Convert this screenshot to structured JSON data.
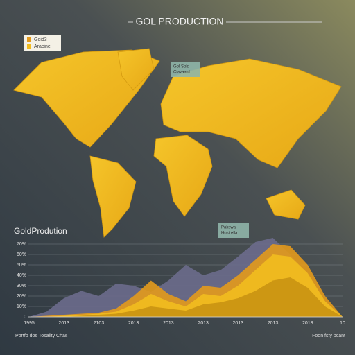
{
  "header": {
    "title": "GOL PRODUCTION"
  },
  "map": {
    "legend": [
      "Goid3",
      "Aracine"
    ],
    "callout": [
      "Gol Sold",
      "Ciavaa d"
    ]
  },
  "chart_data": {
    "type": "area",
    "title": "GoldProdution",
    "callout": [
      "Pakswa",
      "Host ella"
    ],
    "categories": [
      "1995",
      null,
      "2013",
      null,
      "2103",
      null,
      "2013",
      null,
      "2013",
      null,
      "2013",
      null,
      "2013",
      null,
      "2013",
      null,
      "2013",
      null,
      "10"
    ],
    "series": [
      {
        "color": "#6c6c8c",
        "values": [
          0,
          5,
          18,
          25,
          20,
          32,
          30,
          24,
          35,
          50,
          40,
          45,
          58,
          72,
          76,
          60,
          40,
          15,
          0
        ]
      },
      {
        "color": "#e39a1c",
        "values": [
          0,
          1,
          2,
          3,
          4,
          8,
          20,
          35,
          22,
          15,
          30,
          28,
          40,
          55,
          70,
          68,
          50,
          20,
          0
        ]
      },
      {
        "color": "#f2bd1f",
        "values": [
          0,
          0,
          1,
          2,
          3,
          5,
          12,
          22,
          15,
          10,
          22,
          20,
          30,
          45,
          60,
          58,
          42,
          15,
          0
        ]
      },
      {
        "color": "#c99412",
        "values": [
          0,
          0,
          0,
          1,
          2,
          3,
          6,
          10,
          8,
          6,
          12,
          14,
          18,
          25,
          35,
          38,
          28,
          10,
          0
        ]
      }
    ],
    "ylim": [
      0,
      80
    ],
    "yticks": [
      0,
      {
        "value": 10,
        "label": "10%"
      },
      {
        "value": 20,
        "label": "20%"
      },
      {
        "value": 30,
        "label": "30%"
      },
      {
        "value": 40,
        "label": "40%"
      },
      {
        "value": 50,
        "label": "50%"
      },
      {
        "value": 60,
        "label": "60%"
      },
      {
        "value": 70,
        "label": "70%"
      }
    ],
    "grid": true
  },
  "footer": {
    "left": "Portfo dos  Tosaiity Chas",
    "right": "Foon fsty pcant"
  }
}
